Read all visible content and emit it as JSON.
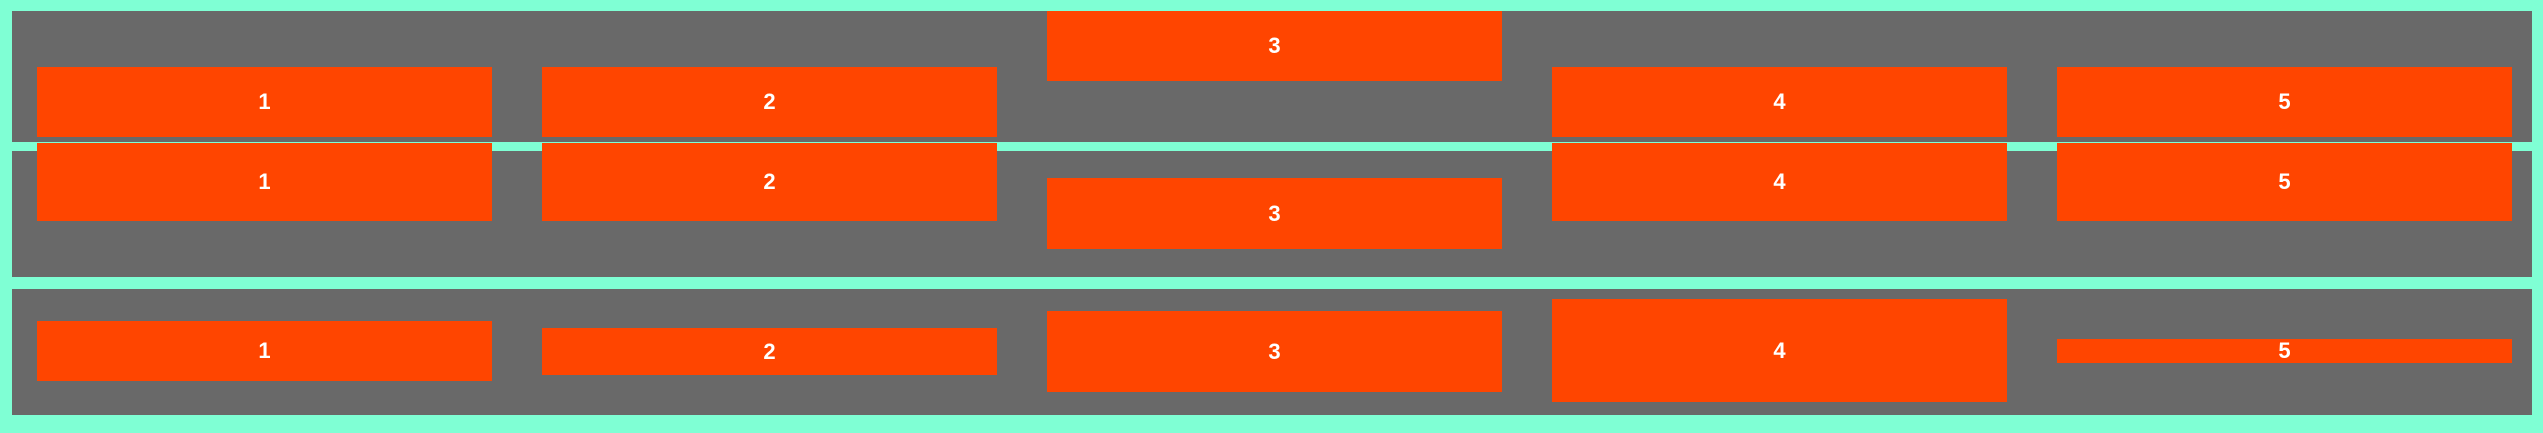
{
  "colors": {
    "background": "#7fffd4",
    "panel": "#696969",
    "box": "#ff4500",
    "text": "#ffffff"
  },
  "rows": [
    {
      "items": [
        {
          "label": "1"
        },
        {
          "label": "2"
        },
        {
          "label": "3"
        },
        {
          "label": "4"
        },
        {
          "label": "5"
        }
      ]
    },
    {
      "items": [
        {
          "label": "1"
        },
        {
          "label": "2"
        },
        {
          "label": "3"
        },
        {
          "label": "4"
        },
        {
          "label": "5"
        }
      ]
    },
    {
      "items": [
        {
          "label": "1"
        },
        {
          "label": "2"
        },
        {
          "label": "3"
        },
        {
          "label": "4"
        },
        {
          "label": "5"
        }
      ]
    }
  ]
}
